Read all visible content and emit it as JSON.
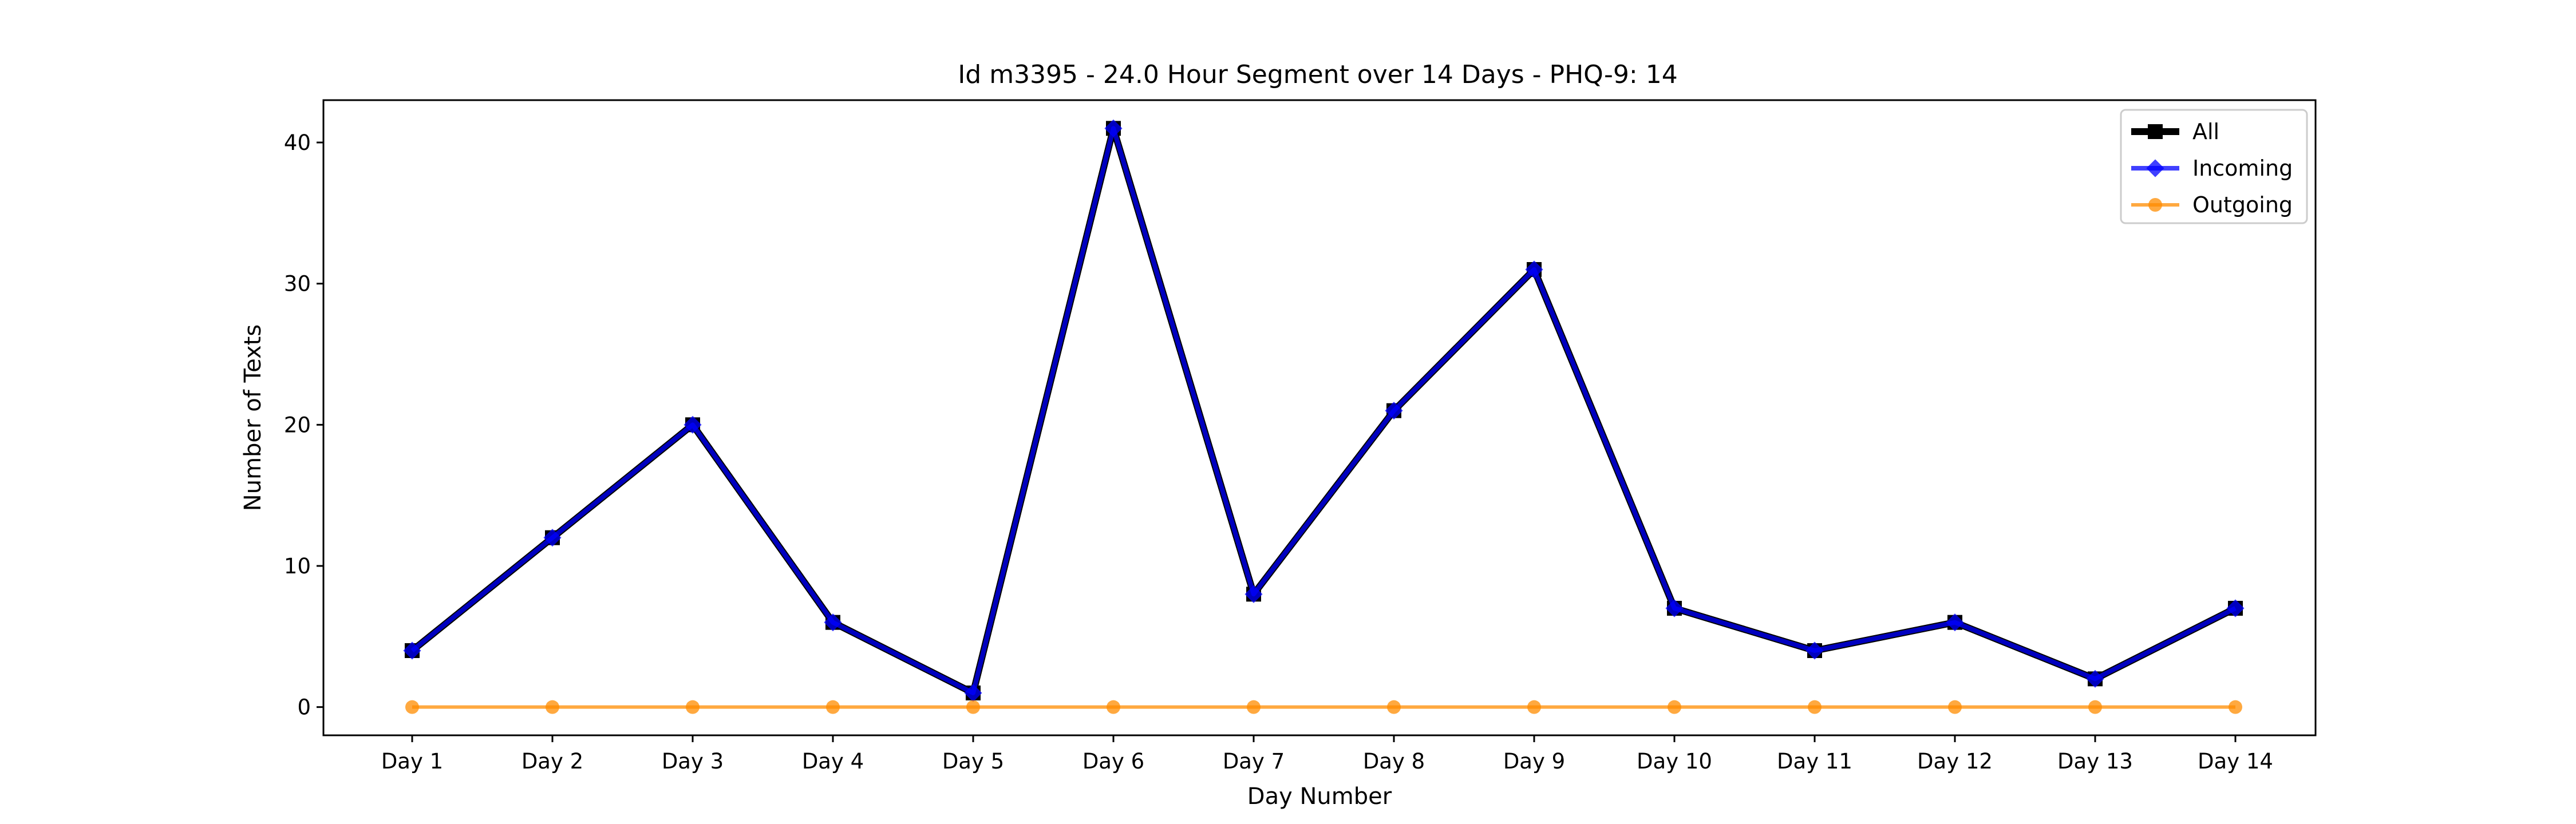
{
  "chart_data": {
    "type": "line",
    "title": "Id m3395 - 24.0 Hour Segment over 14 Days - PHQ-9: 14",
    "xlabel": "Day Number",
    "ylabel": "Number of Texts",
    "categories": [
      "Day 1",
      "Day 2",
      "Day 3",
      "Day 4",
      "Day 5",
      "Day 6",
      "Day 7",
      "Day 8",
      "Day 9",
      "Day 10",
      "Day 11",
      "Day 12",
      "Day 13",
      "Day 14"
    ],
    "ylim": [
      -2,
      43
    ],
    "yticks": [
      0,
      10,
      20,
      30,
      40
    ],
    "grid": false,
    "legend_position": "top-right",
    "series": [
      {
        "name": "All",
        "color": "#000000",
        "marker": "square",
        "values": [
          4,
          12,
          20,
          6,
          1,
          41,
          8,
          21,
          31,
          7,
          4,
          6,
          2,
          7
        ]
      },
      {
        "name": "Incoming",
        "color": "#0000ff",
        "marker": "diamond",
        "values": [
          4,
          12,
          20,
          6,
          1,
          41,
          8,
          21,
          31,
          7,
          4,
          6,
          2,
          7
        ]
      },
      {
        "name": "Outgoing",
        "color": "#ff8c00",
        "marker": "circle",
        "values": [
          0,
          0,
          0,
          0,
          0,
          0,
          0,
          0,
          0,
          0,
          0,
          0,
          0,
          0
        ]
      }
    ]
  }
}
